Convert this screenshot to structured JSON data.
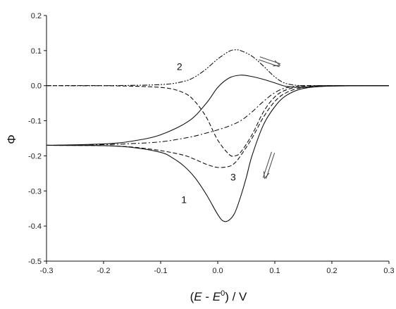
{
  "chart_data": {
    "type": "line",
    "title": "",
    "xlabel_parts": {
      "open": "(",
      "E": "E",
      "minus": " - ",
      "E0": "E",
      "sup": "0",
      "close": ") / V"
    },
    "ylabel": "Φ",
    "xlim": [
      -0.3,
      0.3
    ],
    "ylim": [
      -0.5,
      0.2
    ],
    "x_ticks": [
      -0.3,
      -0.2,
      -0.1,
      0.0,
      0.1,
      0.2,
      0.3
    ],
    "x_tick_labels": [
      "-0.3",
      "-0.2",
      "-0.1",
      "0.0",
      "0.1",
      "0.2",
      "0.3"
    ],
    "y_ticks": [
      0.2,
      0.1,
      0.0,
      -0.1,
      -0.2,
      -0.3,
      -0.4,
      -0.5
    ],
    "y_tick_labels": [
      "0.2",
      "0.1",
      "0.0",
      "-0.1",
      "-0.2",
      "-0.3",
      "-0.4",
      "-0.5"
    ],
    "grid": false,
    "annotations": [
      {
        "text": "2",
        "x": -0.067,
        "y": 0.045
      },
      {
        "text": "3",
        "x": 0.027,
        "y": -0.27
      },
      {
        "text": "1",
        "x": -0.059,
        "y": -0.335
      }
    ],
    "arrows": [
      {
        "name": "upper-direction-arrow",
        "from": [
          0.073,
          0.078
        ],
        "to": [
          0.109,
          0.058
        ]
      },
      {
        "name": "lower-direction-arrow",
        "from": [
          0.097,
          -0.19
        ],
        "to": [
          0.082,
          -0.264
        ]
      }
    ],
    "series": [
      {
        "id": "curve-1-forward",
        "style": "solid",
        "x": [
          -0.3,
          -0.2,
          -0.15,
          -0.1,
          -0.08,
          -0.06,
          -0.04,
          -0.02,
          0.0,
          0.01,
          0.02,
          0.03,
          0.04,
          0.05,
          0.06,
          0.08,
          0.1,
          0.12,
          0.15,
          0.2,
          0.3
        ],
        "y": [
          -0.17,
          -0.171,
          -0.176,
          -0.19,
          -0.205,
          -0.228,
          -0.262,
          -0.31,
          -0.367,
          -0.386,
          -0.383,
          -0.362,
          -0.317,
          -0.262,
          -0.2,
          -0.112,
          -0.06,
          -0.028,
          -0.008,
          -0.001,
          0.0
        ]
      },
      {
        "id": "curve-1-reverse",
        "style": "solid",
        "x": [
          -0.3,
          -0.2,
          -0.15,
          -0.1,
          -0.05,
          -0.02,
          0.0,
          0.02,
          0.04,
          0.06,
          0.08,
          0.1,
          0.12,
          0.15,
          0.2,
          0.3
        ],
        "y": [
          -0.17,
          -0.166,
          -0.158,
          -0.14,
          -0.1,
          -0.05,
          -0.005,
          0.022,
          0.03,
          0.026,
          0.018,
          0.008,
          -0.002,
          -0.005,
          -0.001,
          0.0
        ]
      },
      {
        "id": "curve-2-forward",
        "style": "dashed",
        "x": [
          -0.3,
          -0.2,
          -0.1,
          -0.06,
          -0.04,
          -0.02,
          0.0,
          0.02,
          0.03,
          0.04,
          0.06,
          0.08,
          0.1,
          0.12,
          0.15,
          0.2,
          0.3
        ],
        "y": [
          0.0,
          0.0,
          -0.005,
          -0.02,
          -0.045,
          -0.09,
          -0.155,
          -0.196,
          -0.2,
          -0.19,
          -0.14,
          -0.075,
          -0.032,
          -0.012,
          -0.002,
          0.0,
          0.0
        ]
      },
      {
        "id": "curve-2-reverse",
        "style": "dash-dot-dot",
        "x": [
          -0.3,
          -0.2,
          -0.1,
          -0.06,
          -0.04,
          -0.02,
          0.0,
          0.02,
          0.03,
          0.04,
          0.06,
          0.08,
          0.1,
          0.12,
          0.15,
          0.2,
          0.3
        ],
        "y": [
          0.0,
          0.0,
          0.003,
          0.012,
          0.025,
          0.048,
          0.076,
          0.098,
          0.102,
          0.1,
          0.084,
          0.056,
          0.025,
          0.006,
          0.0,
          0.0,
          0.0
        ]
      },
      {
        "id": "curve-3-forward",
        "style": "dashed",
        "x": [
          -0.3,
          -0.2,
          -0.15,
          -0.1,
          -0.06,
          -0.04,
          -0.02,
          0.0,
          0.02,
          0.03,
          0.04,
          0.06,
          0.08,
          0.1,
          0.12,
          0.15,
          0.2,
          0.3
        ],
        "y": [
          -0.17,
          -0.171,
          -0.175,
          -0.185,
          -0.198,
          -0.21,
          -0.224,
          -0.233,
          -0.23,
          -0.22,
          -0.2,
          -0.15,
          -0.09,
          -0.045,
          -0.02,
          -0.005,
          0.0,
          0.0
        ]
      },
      {
        "id": "curve-3-reverse",
        "style": "dash-dot",
        "x": [
          -0.3,
          -0.2,
          -0.15,
          -0.1,
          -0.05,
          -0.02,
          0.0,
          0.02,
          0.04,
          0.06,
          0.08,
          0.1,
          0.12,
          0.15,
          0.2,
          0.3
        ],
        "y": [
          -0.17,
          -0.168,
          -0.165,
          -0.16,
          -0.147,
          -0.135,
          -0.126,
          -0.115,
          -0.1,
          -0.075,
          -0.045,
          -0.02,
          -0.006,
          0.0,
          0.0,
          0.0
        ]
      }
    ]
  }
}
